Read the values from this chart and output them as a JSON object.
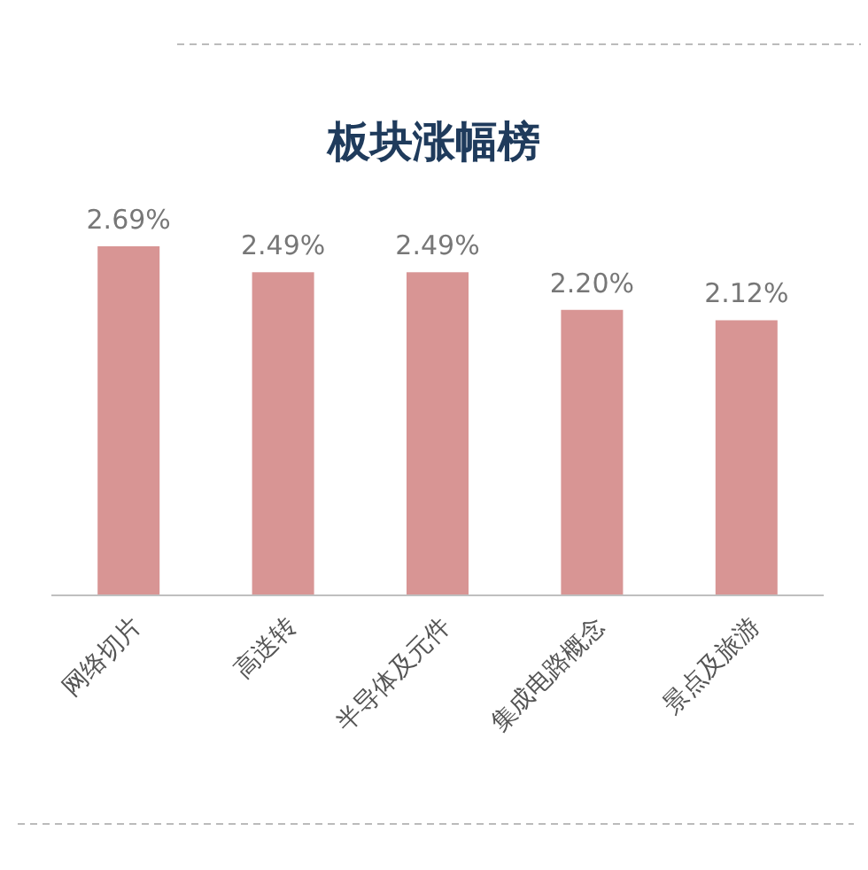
{
  "chart_data": {
    "type": "bar",
    "title": "板块涨幅榜",
    "categories": [
      "网络切片",
      "高送转",
      "半导体及元件",
      "集成电路概念",
      "景点及旅游"
    ],
    "values": [
      2.69,
      2.49,
      2.49,
      2.2,
      2.12
    ],
    "value_labels": [
      "2.69%",
      "2.49%",
      "2.49%",
      "2.20%",
      "2.12%"
    ],
    "color": "#d89594"
  }
}
